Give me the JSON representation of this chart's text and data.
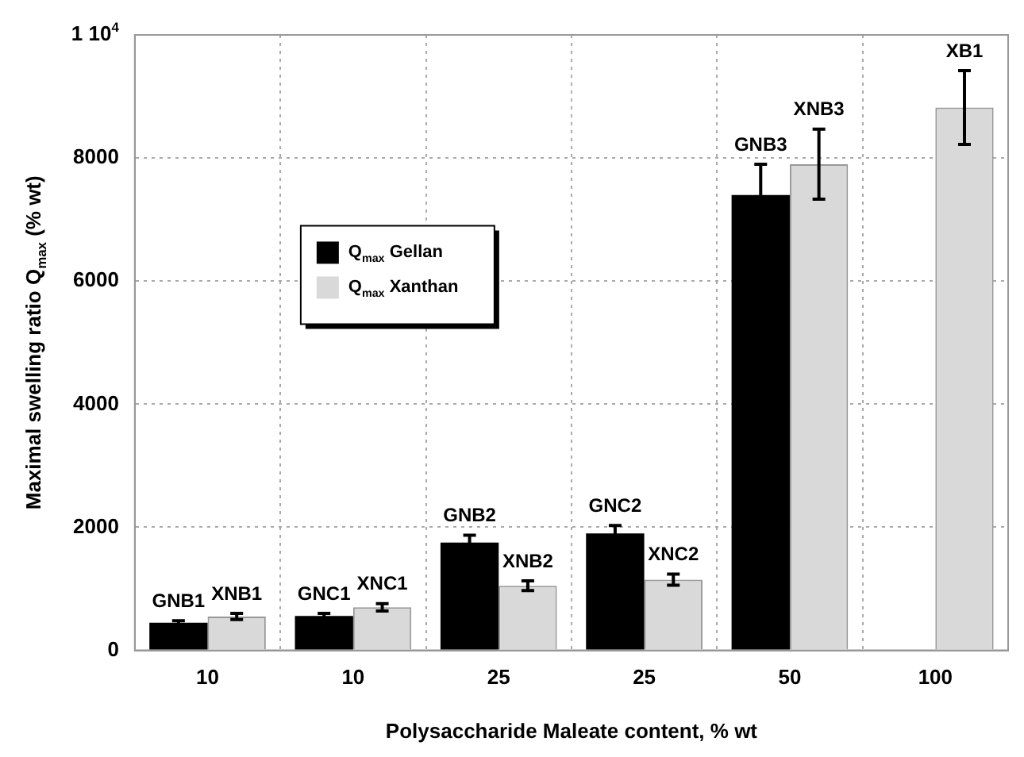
{
  "chart_data": {
    "type": "bar",
    "xlabel": "Polysaccharide Maleate content, % wt",
    "ylabel": "Maximal swelling ratio Q$_{max}$ (% wt)",
    "categories": [
      "10",
      "10",
      "25",
      "25",
      "50",
      "100"
    ],
    "series": [
      {
        "name": "Q$_{max}$ Gellan",
        "color": "#000000",
        "values": [
          450,
          560,
          1750,
          1900,
          7400,
          null
        ],
        "errors": [
          30,
          40,
          120,
          130,
          500,
          null
        ],
        "value_labels": [
          "GNB1",
          "GNC1",
          "GNB2",
          "GNC2",
          "GNB3",
          null
        ]
      },
      {
        "name": "Q$_{max}$ Xanthan",
        "color": "#d9d9d9",
        "values": [
          550,
          700,
          1050,
          1150,
          7900,
          8820
        ],
        "errors": [
          50,
          60,
          80,
          90,
          570,
          600
        ],
        "value_labels": [
          "XNB1",
          "XNC1",
          "XNB2",
          "XNC2",
          "XNB3",
          "XB1"
        ]
      }
    ],
    "ylim": [
      0,
      10000
    ],
    "yticks": [
      0,
      2000,
      4000,
      6000,
      8000,
      {
        "value": 10000,
        "label": "1 10$^{4}$"
      }
    ],
    "grid": true,
    "legend": "top left"
  }
}
